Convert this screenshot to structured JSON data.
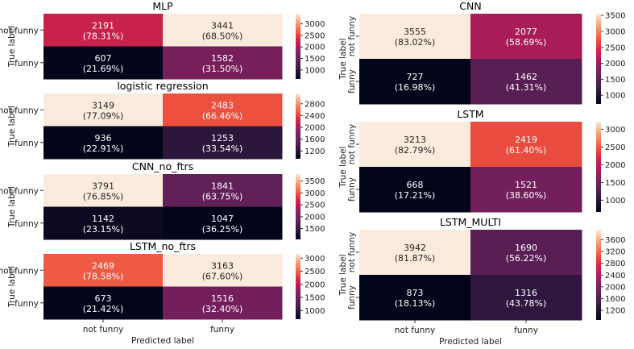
{
  "chart_data": [
    {
      "type": "heatmap",
      "title": "MLP",
      "ylabel": "True label",
      "xlabel": "",
      "row_labels": [
        "not funny",
        "funny"
      ],
      "col_labels": [
        "",
        ""
      ],
      "cells": [
        [
          {
            "count": "2191",
            "pct": "(78.31%)",
            "value": 2191
          },
          {
            "count": "3441",
            "pct": "(68.50%)",
            "value": 3441
          }
        ],
        [
          {
            "count": "607",
            "pct": "(21.69%)",
            "value": 607
          },
          {
            "count": "1582",
            "pct": "(31.50%)",
            "value": 1582
          }
        ]
      ],
      "colorbar": {
        "min": 607,
        "max": 3441,
        "ticks": [
          1000,
          1500,
          2000,
          2500,
          3000
        ]
      }
    },
    {
      "type": "heatmap",
      "title": "logistic regression",
      "ylabel": "True label",
      "xlabel": "",
      "row_labels": [
        "not funny",
        "funny"
      ],
      "col_labels": [
        "",
        ""
      ],
      "cells": [
        [
          {
            "count": "3149",
            "pct": "(77.09%)",
            "value": 3149
          },
          {
            "count": "2483",
            "pct": "(66.46%)",
            "value": 2483
          }
        ],
        [
          {
            "count": "936",
            "pct": "(22.91%)",
            "value": 936
          },
          {
            "count": "1253",
            "pct": "(33.54%)",
            "value": 1253
          }
        ]
      ],
      "colorbar": {
        "min": 936,
        "max": 3149,
        "ticks": [
          1200,
          1600,
          2000,
          2400,
          2800
        ]
      }
    },
    {
      "type": "heatmap",
      "title": "CNN_no_ftrs",
      "ylabel": "True label",
      "xlabel": "",
      "row_labels": [
        "not funny",
        "funny"
      ],
      "col_labels": [
        "",
        ""
      ],
      "cells": [
        [
          {
            "count": "3791",
            "pct": "(76.85%)",
            "value": 3791
          },
          {
            "count": "1841",
            "pct": "(63.75%)",
            "value": 1841
          }
        ],
        [
          {
            "count": "1142",
            "pct": "(23.15%)",
            "value": 1142
          },
          {
            "count": "1047",
            "pct": "(36.25%)",
            "value": 1047
          }
        ]
      ],
      "colorbar": {
        "min": 1047,
        "max": 3791,
        "ticks": [
          1500,
          2000,
          2500,
          3000,
          3500
        ]
      }
    },
    {
      "type": "heatmap",
      "title": "LSTM_no_ftrs",
      "ylabel": "True label",
      "xlabel": "Predicted label",
      "row_labels": [
        "not funny",
        "funny"
      ],
      "col_labels": [
        "not funny",
        "funny"
      ],
      "cells": [
        [
          {
            "count": "2469",
            "pct": "(78.58%)",
            "value": 2469
          },
          {
            "count": "3163",
            "pct": "(67.60%)",
            "value": 3163
          }
        ],
        [
          {
            "count": "673",
            "pct": "(21.42%)",
            "value": 673
          },
          {
            "count": "1516",
            "pct": "(32.40%)",
            "value": 1516
          }
        ]
      ],
      "colorbar": {
        "min": 673,
        "max": 3163,
        "ticks": [
          1000,
          1500,
          2000,
          2500,
          3000
        ]
      }
    },
    {
      "type": "heatmap",
      "title": "CNN",
      "ylabel": "True label",
      "xlabel": "",
      "row_labels": [
        "not funny",
        "funny"
      ],
      "col_labels": [
        "",
        ""
      ],
      "cells": [
        [
          {
            "count": "3555",
            "pct": "(83.02%)",
            "value": 3555
          },
          {
            "count": "2077",
            "pct": "(58.69%)",
            "value": 2077
          }
        ],
        [
          {
            "count": "727",
            "pct": "(16.98%)",
            "value": 727
          },
          {
            "count": "1462",
            "pct": "(41.31%)",
            "value": 1462
          }
        ]
      ],
      "colorbar": {
        "min": 727,
        "max": 3555,
        "ticks": [
          1000,
          1500,
          2000,
          2500,
          3000,
          3500
        ]
      }
    },
    {
      "type": "heatmap",
      "title": "LSTM",
      "ylabel": "True label",
      "xlabel": "",
      "row_labels": [
        "not funny",
        "funny"
      ],
      "col_labels": [
        "",
        ""
      ],
      "cells": [
        [
          {
            "count": "3213",
            "pct": "(82.79%)",
            "value": 3213
          },
          {
            "count": "2419",
            "pct": "(61.40%)",
            "value": 2419
          }
        ],
        [
          {
            "count": "668",
            "pct": "(17.21%)",
            "value": 668
          },
          {
            "count": "1521",
            "pct": "(38.60%)",
            "value": 1521
          }
        ]
      ],
      "colorbar": {
        "min": 668,
        "max": 3213,
        "ticks": [
          1000,
          1500,
          2000,
          2500,
          3000
        ]
      }
    },
    {
      "type": "heatmap",
      "title": "LSTM_MULTI",
      "ylabel": "True label",
      "xlabel": "Predicted label",
      "row_labels": [
        "not funny",
        "funny"
      ],
      "col_labels": [
        "not funny",
        "funny"
      ],
      "cells": [
        [
          {
            "count": "3942",
            "pct": "(81.87%)",
            "value": 3942
          },
          {
            "count": "1690",
            "pct": "(56.22%)",
            "value": 1690
          }
        ],
        [
          {
            "count": "873",
            "pct": "(18.13%)",
            "value": 873
          },
          {
            "count": "1316",
            "pct": "(43.78%)",
            "value": 1316
          }
        ]
      ],
      "colorbar": {
        "min": 873,
        "max": 3942,
        "ticks": [
          1200,
          1600,
          2000,
          2400,
          2800,
          3200,
          3600
        ]
      }
    }
  ],
  "colormap": "rocket"
}
